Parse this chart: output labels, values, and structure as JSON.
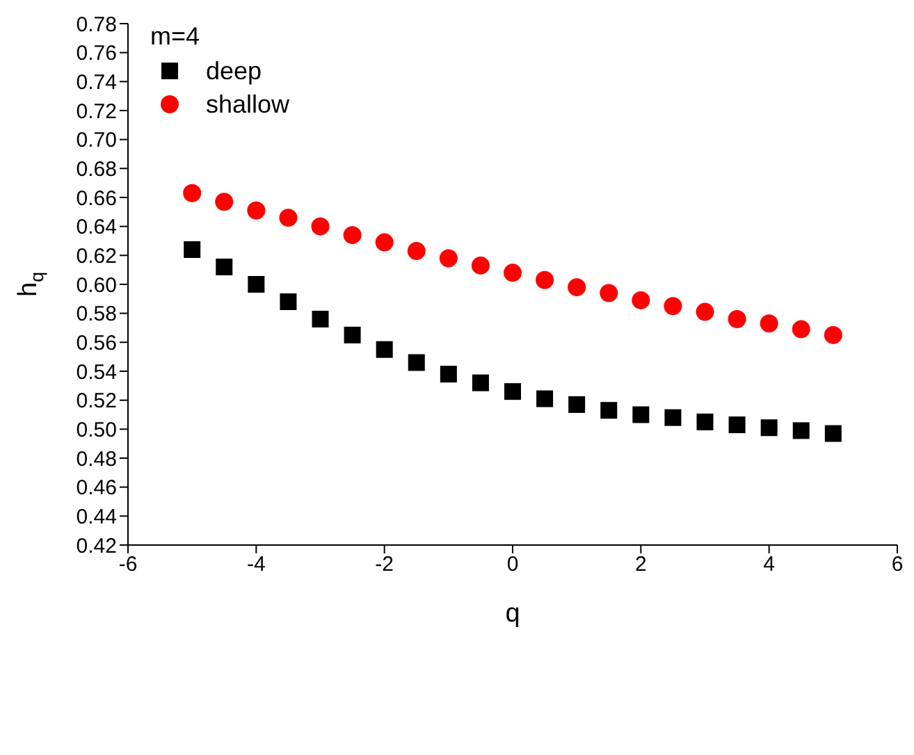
{
  "chart_data": {
    "type": "scatter",
    "xlabel": "q",
    "ylabel": "h$_{q}$",
    "legend_title": "m=4",
    "legend": "top left",
    "grid": false,
    "x": [
      -5,
      -4.5,
      -4,
      -3.5,
      -3,
      -2.5,
      -2,
      -1.5,
      -1,
      -0.5,
      0,
      0.5,
      1,
      1.5,
      2,
      2.5,
      3,
      3.5,
      4,
      4.5,
      5
    ],
    "series": [
      {
        "name": "deep",
        "color": "#000000",
        "marker": "square",
        "values": [
          0.624,
          0.612,
          0.6,
          0.588,
          0.576,
          0.565,
          0.555,
          0.546,
          0.538,
          0.532,
          0.526,
          0.521,
          0.517,
          0.513,
          0.51,
          0.508,
          0.505,
          0.503,
          0.501,
          0.499,
          0.497
        ]
      },
      {
        "name": "shallow",
        "color": "#ff0000",
        "marker": "circle",
        "values": [
          0.663,
          0.657,
          0.651,
          0.646,
          0.64,
          0.634,
          0.629,
          0.623,
          0.618,
          0.613,
          0.608,
          0.603,
          0.598,
          0.594,
          0.589,
          0.585,
          0.581,
          0.576,
          0.573,
          0.569,
          0.565
        ]
      }
    ],
    "xlim": [
      -6,
      6
    ],
    "xticks": [
      -6,
      -4,
      -2,
      0,
      2,
      4,
      6
    ],
    "ylim": [
      0.42,
      0.78
    ],
    "yticks": [
      0.42,
      0.44,
      0.46,
      0.48,
      {
        "value": 0.5,
        "label": "0.50"
      },
      0.52,
      0.54,
      0.56,
      0.58,
      {
        "value": 0.6,
        "label": "0.60"
      },
      0.62,
      0.64,
      0.66,
      0.68,
      {
        "value": 0.7,
        "label": "0.70"
      },
      0.72,
      0.74,
      0.76,
      0.78
    ]
  }
}
